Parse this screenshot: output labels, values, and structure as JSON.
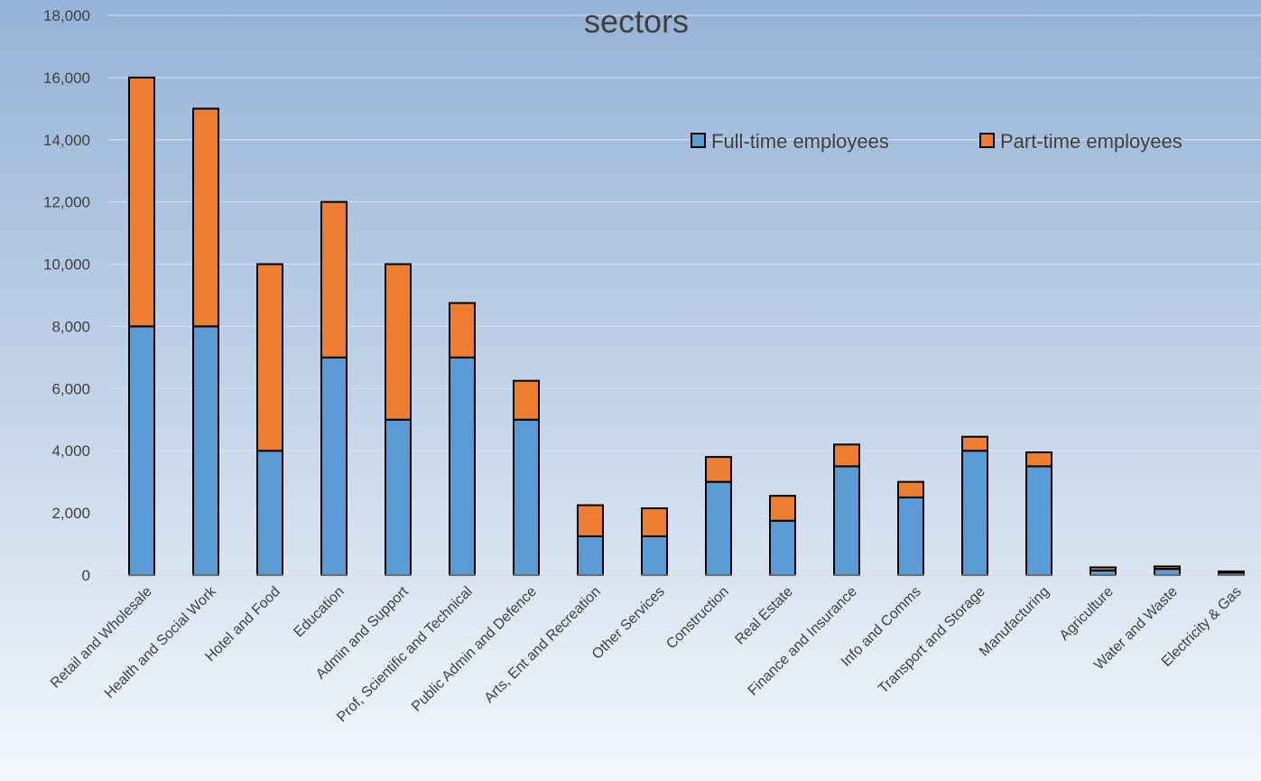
{
  "chart_data": {
    "type": "bar",
    "stacked": true,
    "title": "sectors",
    "categories": [
      "Retail and Wholesale",
      "Health and Social Work",
      "Hotel and Food",
      "Education",
      "Admin and Support",
      "Prof, Scientific and Technical",
      "Public Admin and Defence",
      "Arts, Ent and Recreation",
      "Other Services",
      "Construction",
      "Real Estate",
      "Finance and Insurance",
      "Info and Comms",
      "Transport and Storage",
      "Manufacturing",
      "Agriculture",
      "Water and Waste",
      "Electricity & Gas"
    ],
    "series": [
      {
        "name": "Full-time employees",
        "color": "#5b9bd5",
        "values": [
          8000,
          8000,
          4000,
          7000,
          5000,
          7000,
          5000,
          1250,
          1250,
          3000,
          1750,
          3500,
          2500,
          4000,
          3500,
          150,
          200,
          80
        ]
      },
      {
        "name": "Part-time employees",
        "color": "#ed7d31",
        "values": [
          8000,
          7000,
          6000,
          5000,
          5000,
          1750,
          1250,
          1000,
          900,
          800,
          800,
          700,
          500,
          450,
          450,
          100,
          80,
          40
        ]
      }
    ],
    "ylim": [
      0,
      18000
    ],
    "yticks": [
      "0",
      "2,000",
      "4,000",
      "6,000",
      "8,000",
      "10,000",
      "12,000",
      "14,000",
      "16,000",
      "18,000"
    ],
    "xlabel": "",
    "ylabel": "",
    "grid": true,
    "legend": "top-right"
  }
}
